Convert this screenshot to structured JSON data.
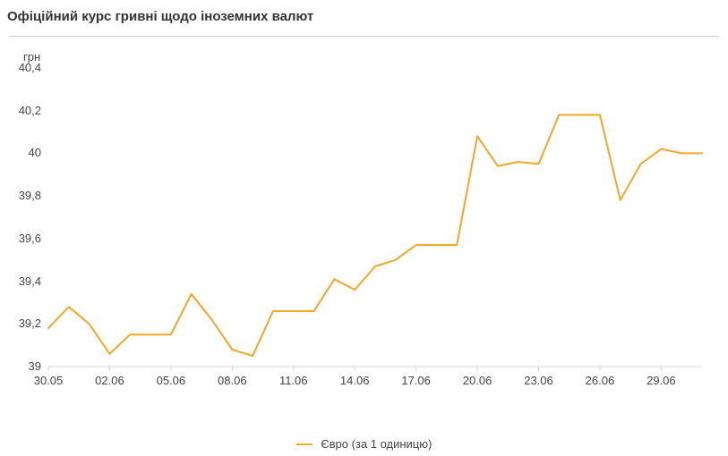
{
  "title": "Офіційний курс гривні щодо іноземних валют",
  "y_unit_label": "грн",
  "border_color": "#cccccc",
  "axis_color": "#d4d4d4",
  "tick_text_color": "#444444",
  "chart": {
    "type": "line",
    "series_name": "Євро (за 1 одиницю)",
    "series_color": "#f5a623",
    "background_color": "#ffffff",
    "line_width": 2,
    "ylim": [
      39.0,
      40.4
    ],
    "ytick_step": 0.2,
    "yticks": [
      39.0,
      39.2,
      39.4,
      39.6,
      39.8,
      40.0,
      40.2,
      40.4
    ],
    "ytick_labels": [
      "39",
      "39,2",
      "39,4",
      "39,6",
      "39,8",
      "40",
      "40,2",
      "40,4"
    ],
    "xticks_idx": [
      0,
      3,
      6,
      9,
      12,
      15,
      18,
      21,
      24,
      27,
      30
    ],
    "xtick_labels": [
      "30.05",
      "02.06",
      "05.06",
      "08.06",
      "11.06",
      "14.06",
      "17.06",
      "20.06",
      "23.06",
      "26.06",
      "29.06"
    ],
    "values": [
      39.18,
      39.28,
      39.2,
      39.06,
      39.15,
      39.15,
      39.15,
      39.34,
      39.22,
      39.08,
      39.05,
      39.26,
      39.26,
      39.26,
      39.41,
      39.36,
      39.47,
      39.5,
      39.57,
      39.57,
      39.57,
      40.08,
      39.94,
      39.96,
      39.95,
      40.18,
      40.18,
      40.18,
      39.78,
      39.95,
      40.02,
      40.0,
      40.0
    ]
  }
}
